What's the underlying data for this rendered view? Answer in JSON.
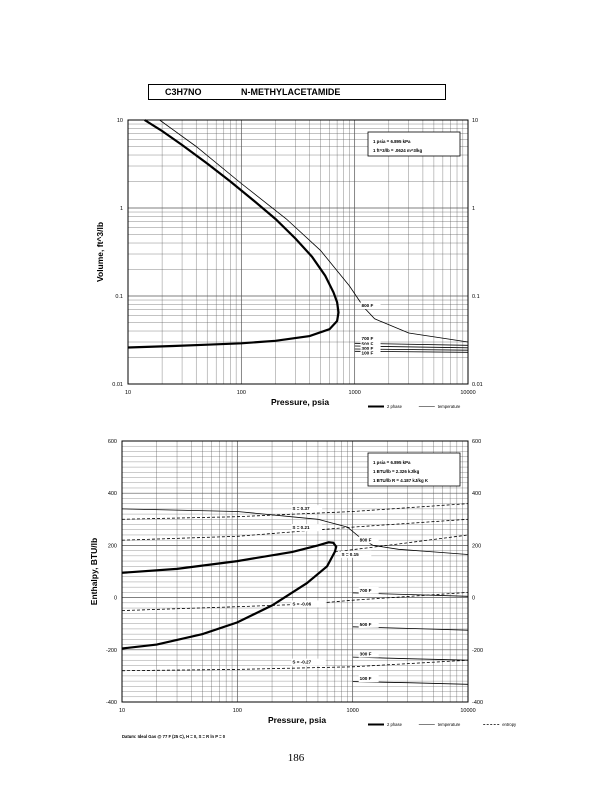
{
  "header": {
    "formula": "C3H7NO",
    "name": "N-METHYLACETAMIDE"
  },
  "page_number": "186",
  "chart_data": [
    {
      "type": "line",
      "title": "",
      "xlabel": "Pressure,  psia",
      "ylabel": "Volume,  ft^3/lb",
      "x_scale": "log",
      "y_scale": "log",
      "xlim": [
        10,
        10000
      ],
      "ylim": [
        0.01,
        10
      ],
      "x_ticks": [
        "10",
        "100",
        "1000",
        "10000"
      ],
      "y_ticks_left": [
        "0.01",
        "0.1",
        "1",
        "10"
      ],
      "y_ticks_right": [
        "0.01",
        "0.1",
        "1",
        "10"
      ],
      "grid": true,
      "legend_position": "bottom-right",
      "legend": [
        {
          "label": "2 phase",
          "style": "solid-thick"
        },
        {
          "label": "temperature",
          "style": "solid-thin"
        }
      ],
      "notes": [
        "1 psia  =  6.895 kPa",
        "1 ft^3/lb  =  .0624 m^3/kg"
      ],
      "series": [
        {
          "name": "2 phase",
          "kind": "dome",
          "x": [
            14,
            20,
            30,
            50,
            80,
            130,
            200,
            300,
            420,
            550,
            650,
            700,
            720,
            700,
            600,
            400,
            200,
            100,
            50,
            25,
            10
          ],
          "y": [
            10,
            7.5,
            5.2,
            3.2,
            2.0,
            1.2,
            0.75,
            0.45,
            0.28,
            0.17,
            0.11,
            0.085,
            0.065,
            0.052,
            0.042,
            0.035,
            0.031,
            0.029,
            0.028,
            0.027,
            0.026
          ]
        },
        {
          "name": "800 F",
          "kind": "temperature",
          "x": [
            19,
            40,
            100,
            250,
            500,
            900,
            1200,
            1500,
            3000,
            10000
          ],
          "y": [
            10,
            5,
            1.9,
            0.75,
            0.33,
            0.13,
            0.075,
            0.055,
            0.038,
            0.03
          ]
        },
        {
          "name": "700 F",
          "kind": "temperature",
          "x": [
            1000,
            10000
          ],
          "y": [
            0.029,
            0.0275
          ]
        },
        {
          "name": "500 F",
          "kind": "temperature",
          "x": [
            1000,
            10000
          ],
          "y": [
            0.027,
            0.0258
          ]
        },
        {
          "name": "300 F",
          "kind": "temperature",
          "x": [
            1000,
            10000
          ],
          "y": [
            0.025,
            0.0242
          ]
        },
        {
          "name": "100 F",
          "kind": "temperature",
          "x": [
            1000,
            10000
          ],
          "y": [
            0.0235,
            0.0229
          ]
        }
      ]
    },
    {
      "type": "line",
      "title": "",
      "xlabel": "Pressure,  psia",
      "ylabel": "Enthalpy,  BTU/lb",
      "x_scale": "log",
      "y_scale": "linear",
      "xlim": [
        10,
        10000
      ],
      "ylim": [
        -400,
        600
      ],
      "x_ticks": [
        "10",
        "100",
        "1000",
        "10000"
      ],
      "y_ticks_left": [
        "-400",
        "-200",
        "0",
        "200",
        "400",
        "600"
      ],
      "y_ticks_right": [
        "-400",
        "-200",
        "0",
        "200",
        "400",
        "600"
      ],
      "grid": true,
      "legend_position": "bottom-right",
      "legend": [
        {
          "label": "2 phase",
          "style": "solid-thick"
        },
        {
          "label": "temperature",
          "style": "solid-thin"
        },
        {
          "label": "entropy",
          "style": "dashed"
        }
      ],
      "notes": [
        "1 psia  =  6.895 kPa",
        "1 BTU/lb  =  2.326 kJ/kg",
        "1 BTU/lb R  =  4.187 kJ/kg K"
      ],
      "footnote": "Datum: Ideal Gas @ 77 F (25 C),  H = 0,  S = R ln P = 0",
      "series": [
        {
          "name": "2 phase",
          "kind": "dome",
          "x": [
            10,
            30,
            100,
            300,
            500,
            620,
            680,
            720,
            700,
            600,
            400,
            200,
            100,
            50,
            20,
            10
          ],
          "y": [
            95,
            110,
            140,
            175,
            200,
            212,
            210,
            195,
            175,
            120,
            55,
            -30,
            -95,
            -140,
            -180,
            -195
          ]
        },
        {
          "name": "800 F",
          "kind": "temperature",
          "x": [
            10,
            100,
            500,
            900,
            1200,
            1500,
            2500,
            5000,
            10000
          ],
          "y": [
            340,
            330,
            300,
            270,
            225,
            200,
            185,
            175,
            165
          ]
        },
        {
          "name": "700 F",
          "kind": "temperature",
          "x": [
            1000,
            3000,
            10000
          ],
          "y": [
            18,
            12,
            5
          ]
        },
        {
          "name": "500 F",
          "kind": "temperature",
          "x": [
            1000,
            3000,
            10000
          ],
          "y": [
            -112,
            -118,
            -125
          ]
        },
        {
          "name": "300 F",
          "kind": "temperature",
          "x": [
            1000,
            3000,
            10000
          ],
          "y": [
            -228,
            -234,
            -240
          ]
        },
        {
          "name": "100 F",
          "kind": "temperature",
          "x": [
            1000,
            3000,
            10000
          ],
          "y": [
            -322,
            -326,
            -332
          ]
        },
        {
          "name": "S = 0.37",
          "kind": "entropy",
          "x": [
            10,
            100,
            1000,
            10000
          ],
          "y": [
            300,
            310,
            330,
            360
          ]
        },
        {
          "name": "S = 0.21",
          "kind": "entropy",
          "x": [
            10,
            100,
            1000,
            10000
          ],
          "y": [
            220,
            235,
            270,
            300
          ]
        },
        {
          "name": "S = 0.15",
          "kind": "entropy",
          "x": [
            700,
            2000,
            10000
          ],
          "y": [
            175,
            200,
            240
          ]
        },
        {
          "name": "S = -0.06",
          "kind": "entropy",
          "x": [
            10,
            100,
            400,
            1000,
            10000
          ],
          "y": [
            -50,
            -35,
            -25,
            -10,
            20
          ]
        },
        {
          "name": "S = -0.27",
          "kind": "entropy",
          "x": [
            10,
            100,
            1000,
            10000
          ],
          "y": [
            -280,
            -275,
            -265,
            -240
          ]
        }
      ],
      "curve_labels": [
        {
          "text": "S = 0.37",
          "x": 300,
          "y": 335
        },
        {
          "text": "S = 0.21",
          "x": 300,
          "y": 262
        },
        {
          "text": "S = 0.15",
          "x": 800,
          "y": 160
        },
        {
          "text": "800 F",
          "x": 1150,
          "y": 215
        },
        {
          "text": "S = -0.06",
          "x": 300,
          "y": -30
        },
        {
          "text": "700 F",
          "x": 1150,
          "y": 22
        },
        {
          "text": "500 F",
          "x": 1150,
          "y": -108
        },
        {
          "text": "300 F",
          "x": 1150,
          "y": -222
        },
        {
          "text": "S = -0.27",
          "x": 300,
          "y": -253
        },
        {
          "text": "100 F",
          "x": 1150,
          "y": -316
        }
      ]
    }
  ],
  "top_curve_labels": [
    {
      "text": "800 F",
      "x": 1150,
      "y": 0.075
    },
    {
      "text": "700 F",
      "x": 1150,
      "y": 0.0315
    },
    {
      "text": "500 F",
      "x": 1150,
      "y": 0.0275
    },
    {
      "text": "300 F",
      "x": 1150,
      "y": 0.0245
    },
    {
      "text": "100 F",
      "x": 1150,
      "y": 0.0215
    }
  ]
}
